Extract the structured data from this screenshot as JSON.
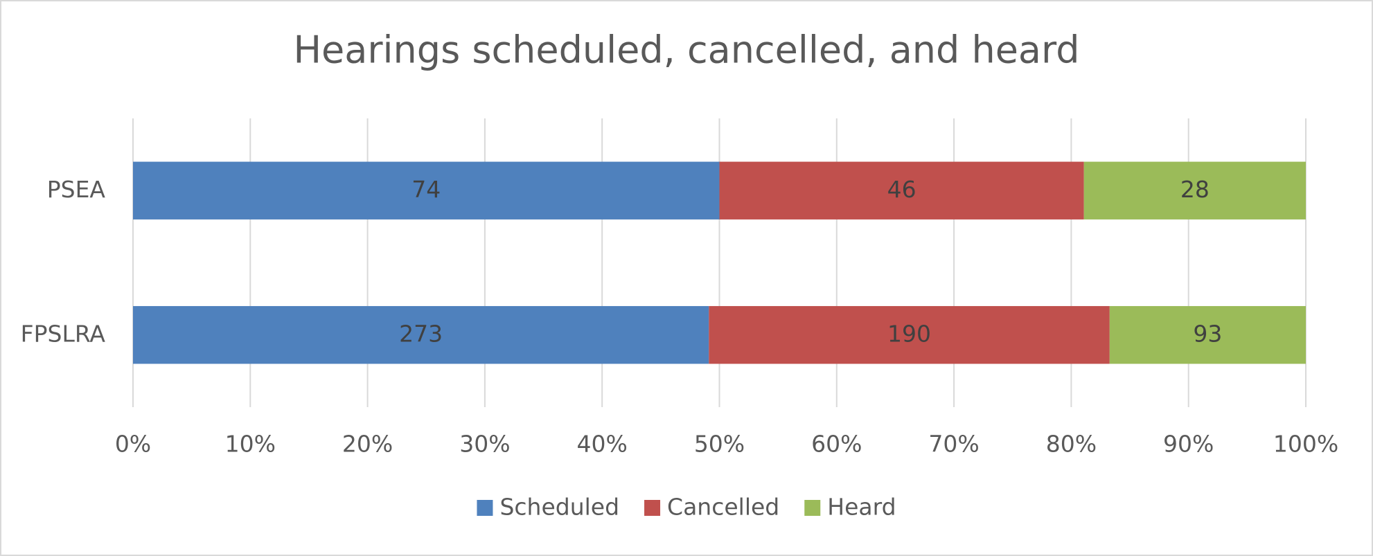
{
  "chart_data": {
    "type": "bar",
    "orientation": "horizontal",
    "stacking": "percent",
    "title": "Hearings scheduled, cancelled, and heard",
    "categories": [
      "PSEA",
      "FPSLRA"
    ],
    "series": [
      {
        "name": "Scheduled",
        "color": "#4f81bd",
        "values": [
          74,
          273
        ]
      },
      {
        "name": "Cancelled",
        "color": "#c0504d",
        "values": [
          46,
          190
        ]
      },
      {
        "name": "Heard",
        "color": "#9bbb59",
        "values": [
          28,
          93
        ]
      }
    ],
    "xlim": [
      0,
      100
    ],
    "xticks": [
      {
        "value": 0,
        "label": "0%"
      },
      {
        "value": 10,
        "label": "10%"
      },
      {
        "value": 20,
        "label": "20%"
      },
      {
        "value": 30,
        "label": "30%"
      },
      {
        "value": 40,
        "label": "40%"
      },
      {
        "value": 50,
        "label": "50%"
      },
      {
        "value": 60,
        "label": "60%"
      },
      {
        "value": 70,
        "label": "70%"
      },
      {
        "value": 80,
        "label": "80%"
      },
      {
        "value": 90,
        "label": "90%"
      },
      {
        "value": 100,
        "label": "100%"
      }
    ],
    "grid": true,
    "legend": "bottom"
  }
}
